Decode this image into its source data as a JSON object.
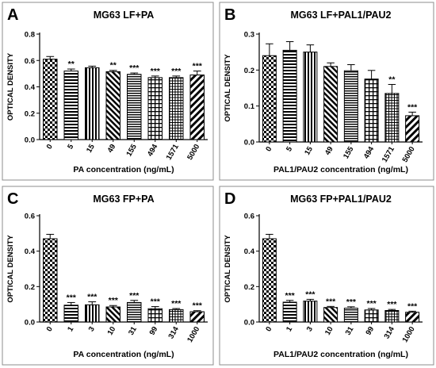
{
  "chart_data": [
    {
      "type": "bar",
      "panel_letter": "A",
      "title": "MG63 LF+PA",
      "xlabel": "PA concentration (ng/mL)",
      "ylabel": "OPTICAL DENSITY",
      "categories": [
        "0",
        "5",
        "15",
        "49",
        "155",
        "494",
        "1571",
        "5000"
      ],
      "values": [
        0.61,
        0.52,
        0.545,
        0.515,
        0.495,
        0.47,
        0.47,
        0.49
      ],
      "errors": [
        0.02,
        0.015,
        0.012,
        0.01,
        0.01,
        0.012,
        0.012,
        0.03
      ],
      "significance": [
        "",
        "**",
        "",
        "**",
        "***",
        "***",
        "***",
        "***"
      ],
      "ylim": [
        0,
        0.8
      ],
      "yticks": [
        "0.0",
        "0.2",
        "0.4",
        "0.6",
        "0.8"
      ],
      "x_labels_rotated": true,
      "patterns": [
        "checker",
        "hlines",
        "vlines",
        "diag-fwd",
        "hlines-fine",
        "grid",
        "grid-fine",
        "diag-back"
      ]
    },
    {
      "type": "bar",
      "panel_letter": "B",
      "title": "MG63 LF+PAL1/PAU2",
      "xlabel": "PAL1/PAU2 concentration (ng/mL)",
      "ylabel": "OPTICAL DENSITY",
      "categories": [
        "0",
        "5",
        "15",
        "49",
        "155",
        "494",
        "1571",
        "5000"
      ],
      "values": [
        0.24,
        0.255,
        0.25,
        0.21,
        0.198,
        0.175,
        0.135,
        0.073
      ],
      "errors": [
        0.033,
        0.024,
        0.02,
        0.01,
        0.017,
        0.024,
        0.025,
        0.01
      ],
      "significance": [
        "",
        "",
        "",
        "",
        "",
        "",
        "**",
        "***"
      ],
      "ylim": [
        0,
        0.3
      ],
      "yticks": [
        "0.0",
        "0.1",
        "0.2",
        "0.3"
      ],
      "x_labels_rotated": true,
      "patterns": [
        "checker",
        "hlines",
        "vlines",
        "diag-fwd",
        "hlines-fine",
        "grid",
        "grid-fine",
        "diag-back"
      ]
    },
    {
      "type": "bar",
      "panel_letter": "C",
      "title": "MG63 FP+PA",
      "xlabel": "PA concentration (ng/mL)",
      "ylabel": "OPTICAL DENSITY",
      "categories": [
        "0",
        "1",
        "3",
        "10",
        "31",
        "99",
        "314",
        "1000"
      ],
      "values": [
        0.47,
        0.095,
        0.097,
        0.085,
        0.11,
        0.075,
        0.07,
        0.058
      ],
      "errors": [
        0.025,
        0.015,
        0.017,
        0.008,
        0.012,
        0.012,
        0.006,
        0.006
      ],
      "significance": [
        "",
        "***",
        "***",
        "***",
        "***",
        "***",
        "***",
        "***"
      ],
      "ylim": [
        0,
        0.6
      ],
      "yticks": [
        "0.0",
        "0.2",
        "0.4",
        "0.6"
      ],
      "x_labels_rotated": true,
      "patterns": [
        "checker",
        "hlines",
        "vlines",
        "diag-fwd",
        "hlines-fine",
        "grid",
        "grid-fine",
        "diag-back"
      ]
    },
    {
      "type": "bar",
      "panel_letter": "D",
      "title": "MG63 FP+PAL1/PAU2",
      "xlabel": "PAL1/PAU2 concentration (ng/mL)",
      "ylabel": "OPTICAL DENSITY",
      "categories": [
        "0",
        "1",
        "3",
        "10",
        "31",
        "99",
        "314",
        "1000"
      ],
      "values": [
        0.47,
        0.112,
        0.118,
        0.082,
        0.078,
        0.068,
        0.065,
        0.055
      ],
      "errors": [
        0.025,
        0.01,
        0.01,
        0.006,
        0.008,
        0.008,
        0.006,
        0.006
      ],
      "significance": [
        "",
        "***",
        "***",
        "***",
        "***",
        "***",
        "***",
        "***"
      ],
      "ylim": [
        0,
        0.6
      ],
      "yticks": [
        "0.0",
        "0.2",
        "0.4",
        "0.6"
      ],
      "x_labels_rotated": true,
      "patterns": [
        "checker",
        "hlines",
        "vlines",
        "diag-fwd",
        "hlines-fine",
        "grid",
        "grid-fine",
        "diag-back"
      ]
    }
  ]
}
